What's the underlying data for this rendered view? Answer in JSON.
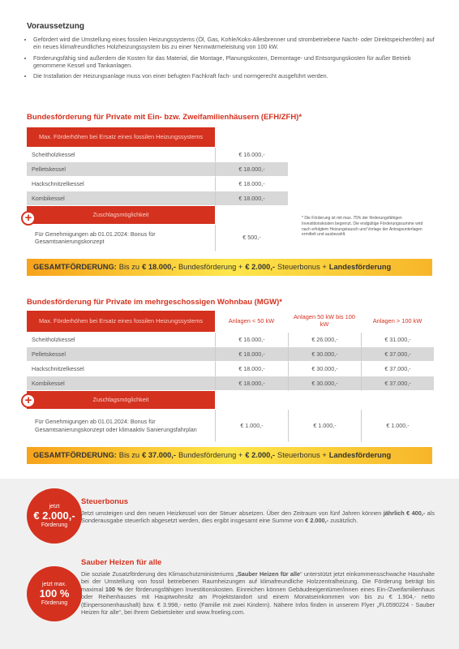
{
  "voraussetzung": {
    "title": "Voraussetzung",
    "bullets": [
      "Gefördert wird die Umstellung eines fossilen Heizungssystems (Öl, Gas, Kohle/Koks-Allesbrenner und strombetriebene Nacht- oder Direktspeicheröfen) auf ein neues klimafreundliches Holzheizungssystem bis zu einer Nennwärmeleistung von 100 kW.",
      "Förderungsfähig sind außerdem die Kosten für das Material, die Montage, Planungskosten, Demontage- und Entsorgungskosten für außer Betrieb genommene Kessel und Tankanlagen.",
      "Die Installation der Heizungsanlage muss von einer befugten Fachkraft fach- und normgerecht ausgeführt werden."
    ]
  },
  "efh": {
    "title": "Bundesförderung für Private mit Ein- bzw. Zweifamilienhäusern (EFH/ZFH)*",
    "header": "Max. Förderhöhen bei Ersatz eines fossilen Heizungssystems",
    "rows": [
      [
        "Scheitholzkessel",
        "€ 16.000,-"
      ],
      [
        "Pelletskessel",
        "€ 18.000,-"
      ],
      [
        "Hackschnitzelkessel",
        "€ 18.000,-"
      ],
      [
        "Kombikessel",
        "€ 18.000,-"
      ]
    ],
    "zuschlag": "Zuschlagsmöglichkeit",
    "bonus": [
      "Für Genehmigungen ab 01.01.2024: Bonus für Gesamtsanierungskonzept",
      "€ 500,-"
    ],
    "note": "* Die Förderung ist mit max. 75% der förderungsfähigen Investitionskosten begrenzt. Die endgültige Förderungssumme wird nach erfolgtem Heizungstausch und Vorlage der Antragsunterlagen ermittelt und ausbezahlt.",
    "total": {
      "label": "GESAMTFÖRDERUNG:",
      "prefix": "Bis zu",
      "amount": "€ 18.000,-",
      "text1": "Bundesförderung +",
      "bonus": "€ 2.000,-",
      "text2": "Steuerbonus +",
      "landes": "Landesförderung"
    }
  },
  "mgw": {
    "title": "Bundesförderung für Private im mehrgeschossigen Wohnbau (MGW)*",
    "header": [
      "Max. Förderhöhen bei Ersatz eines fossilen Heizungssystems",
      "Anlagen < 50 kW",
      "Anlagen 50 kW bis 100 kW",
      "Anlagen > 100 kW"
    ],
    "rows": [
      [
        "Scheitholzkessel",
        "€ 16.000,-",
        "€ 26.000,-",
        "€ 31.000,-"
      ],
      [
        "Pelletskessel",
        "€ 18.000,-",
        "€ 30.000,-",
        "€ 37.000,-"
      ],
      [
        "Hackschnitzelkessel",
        "€ 18.000,-",
        "€ 30.000,-",
        "€ 37.000,-"
      ],
      [
        "Kombikessel",
        "€ 18.000,-",
        "€ 30.000,-",
        "€ 37.000,-"
      ]
    ],
    "zuschlag": "Zuschlagsmöglichkeit",
    "bonus": [
      "Für Genehmigungen ab 01.01.2024: Bonus für Gesamtsanierungskonzept oder klimaaktiv Sanierungsfahrplan",
      "€ 1.000,-",
      "€ 1.000,-",
      "€ 1.000,-"
    ],
    "total": {
      "label": "GESAMTFÖRDERUNG:",
      "prefix": "Bis zu",
      "amount": "€ 37.000,-",
      "text1": "Bundesförderung +",
      "bonus": "€ 2.000,-",
      "text2": "Steuerbonus +",
      "landes": "Landesförderung"
    }
  },
  "steuerbonus": {
    "badge": [
      "jetzt",
      "€ 2.000,-",
      "Förderung"
    ],
    "title": "Steuerbonus",
    "text": [
      "Jetzt umsteigen und den neuen Heizkessel von der Steuer absetzen. Über den Zeitraum von fünf Jahren können ",
      "jährlich € 400,-",
      " als Sonderausgabe steuerlich abgesetzt werden, dies ergibt insgesamt eine Summe von ",
      "€ 2.000,-",
      " zusätzlich."
    ]
  },
  "sauber": {
    "badge": [
      "jetzt max.",
      "100 %",
      "Förderung"
    ],
    "title": "Sauber Heizen für alle",
    "text": [
      "Die soziale Zusatzförderung des Klimaschutzministeriums „",
      "Sauber Heizen für alle",
      "“ unterstützt jetzt einkommensschwache Haushalte bei der Umstellung von fossil betriebenen Raumheizungen auf klimafreundliche Holzzentralheizung. Die Förderung beträgt bis maximal ",
      "100 %",
      " der förderungsfähigen Investitionskosten. Einreichen können Gebäudeeigentümer/innen eines Ein-/Zweifamilienhaus oder Reihenhauses mit Hauptwohnsitz am Projektstandort und einem Monatseinkommen von bis zu € 1.904,- netto (Einpersonenhaushalt) bzw. € 3.998,- netto (Familie mit zwei Kindern). Nähere Infos finden in unserem Flyer „FL0590224 - Sauber Heizen für alle“, bei Ihrem Gebietsleiter und www.froeling.com."
    ]
  }
}
